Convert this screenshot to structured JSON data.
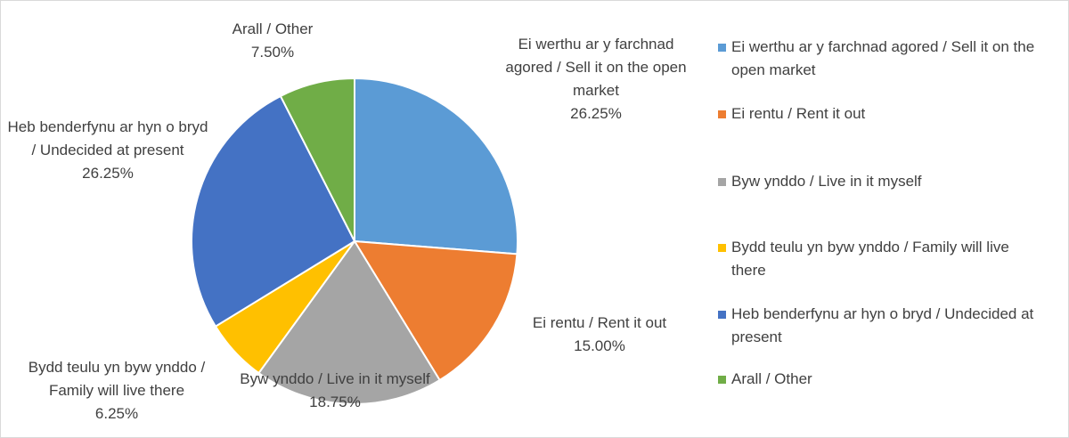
{
  "chart_data": {
    "type": "pie",
    "categories": [
      "Ei werthu ar y farchnad agored / Sell it on the open market",
      "Ei rentu / Rent it out",
      "Byw ynddo / Live in it myself",
      "Bydd teulu yn byw ynddo / Family will live there",
      "Heb benderfynu ar hyn o bryd / Undecided at present",
      "Arall / Other"
    ],
    "values": [
      26.25,
      15.0,
      18.75,
      6.25,
      26.25,
      7.5
    ],
    "value_labels": [
      "26.25%",
      "15.00%",
      "18.75%",
      "6.25%",
      "26.25%",
      "7.50%"
    ],
    "colors": [
      "#5b9bd5",
      "#ed7d31",
      "#a5a5a5",
      "#ffc000",
      "#4472c4",
      "#70ad47"
    ],
    "legend": "right"
  }
}
